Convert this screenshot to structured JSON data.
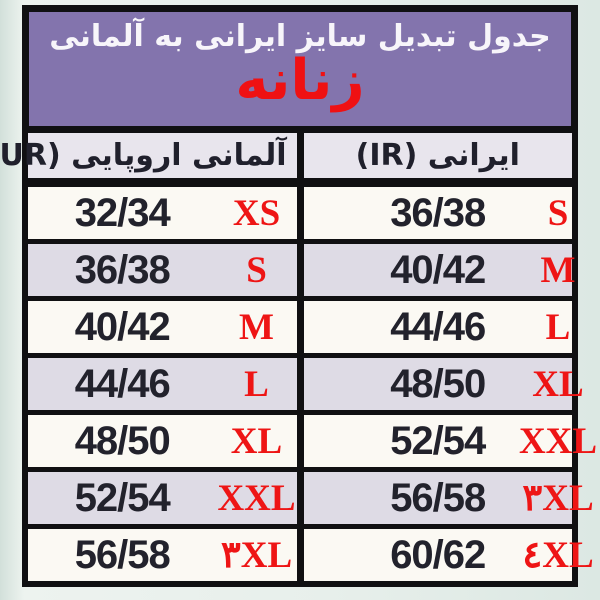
{
  "banner": {
    "title": "جدول تبدیل سایز ایرانی به آلمانی",
    "subtitle": "زنانه"
  },
  "table": {
    "headers": {
      "eur": "آلمانی اروپایی (EUR)",
      "ir": "ایرانی (IR)"
    },
    "rows": [
      {
        "eur": "32/34",
        "eur_size": "XS",
        "ir": "36/38",
        "ir_size": "S"
      },
      {
        "eur": "36/38",
        "eur_size": "S",
        "ir": "40/42",
        "ir_size": "M"
      },
      {
        "eur": "40/42",
        "eur_size": "M",
        "ir": "44/46",
        "ir_size": "L"
      },
      {
        "eur": "44/46",
        "eur_size": "L",
        "ir": "48/50",
        "ir_size": "XL"
      },
      {
        "eur": "48/50",
        "eur_size": "XL",
        "ir": "52/54",
        "ir_size": "XXL"
      },
      {
        "eur": "52/54",
        "eur_size": "XXL",
        "ir": "56/58",
        "ir_size": "۳XL"
      },
      {
        "eur": "56/58",
        "eur_size": "۳XL",
        "ir": "60/62",
        "ir_size": "٤XL"
      }
    ]
  },
  "colors": {
    "banner_background": "#8374ad",
    "banner_text": "#f7f5fa",
    "accent_red": "#ee1515",
    "border_black": "#101012",
    "row_light": "#fbf9f3",
    "row_lavender": "#dedbe5",
    "header_cell": "#e8e5ed",
    "page_background": "#e7efeb",
    "number_text": "#22222c"
  },
  "chart_data": {
    "type": "table",
    "title": "جدول تبدیل سایز ایرانی به آلمانی",
    "subtitle": "زنانه",
    "columns": [
      "آلمانی اروپایی (EUR)",
      "ایرانی (IR)"
    ],
    "rows": [
      [
        "32/34 XS",
        "36/38 S"
      ],
      [
        "36/38 S",
        "40/42 M"
      ],
      [
        "40/42 M",
        "44/46 L"
      ],
      [
        "44/46 L",
        "48/50 XL"
      ],
      [
        "48/50 XL",
        "52/54 XXL"
      ],
      [
        "52/54 XXL",
        "56/58 ۳XL"
      ],
      [
        "56/58 ۳XL",
        "60/62 ٤XL"
      ]
    ]
  }
}
